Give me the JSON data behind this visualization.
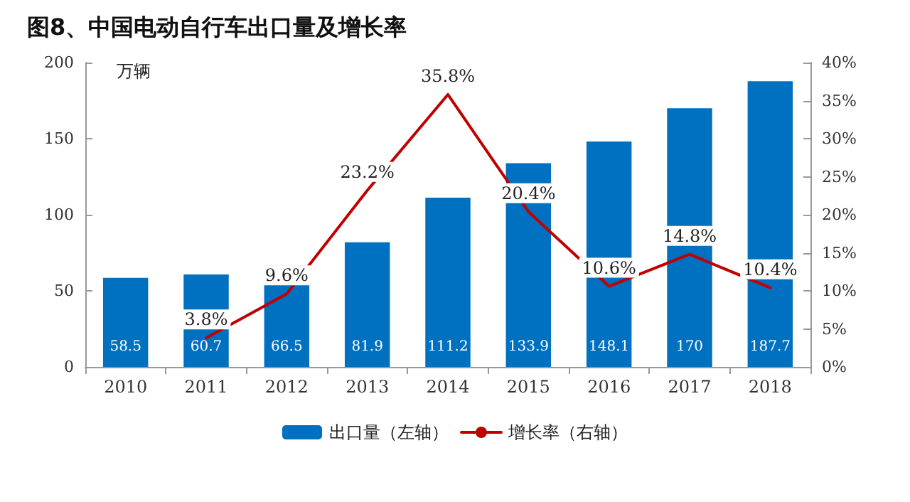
{
  "chart_data": {
    "type": "bar",
    "title": "图8、中国电动自行车出口量及增长率",
    "ylabel": "万辆",
    "categories": [
      "2010",
      "2011",
      "2012",
      "2013",
      "2014",
      "2015",
      "2016",
      "2017",
      "2018"
    ],
    "series": [
      {
        "name": "出口量（左轴）",
        "color": "#0070c0",
        "values": [
          58.5,
          60.7,
          66.5,
          81.9,
          111.2,
          133.9,
          148.1,
          170,
          187.7
        ],
        "value_labels": [
          "58.5",
          "60.7",
          "66.5",
          "81.9",
          "111.2",
          "133.9",
          "148.1",
          "170",
          "187.7"
        ]
      },
      {
        "name": "增长率（右轴）",
        "type": "line",
        "axis": "y2",
        "color": "#c00000",
        "values": [
          null,
          3.8,
          9.6,
          23.2,
          35.8,
          20.4,
          10.6,
          14.8,
          10.4
        ],
        "value_labels": [
          null,
          "3.8%",
          "9.6%",
          "23.2%",
          "35.8%",
          "20.4%",
          "10.6%",
          "14.8%",
          "10.4%"
        ]
      }
    ],
    "ylim": [
      0,
      200
    ],
    "yticks": [
      0,
      50,
      100,
      150,
      200
    ],
    "y2lim": [
      0,
      40
    ],
    "y2ticks": [
      {
        "value": 0,
        "label": "0%"
      },
      {
        "value": 5,
        "label": "5%"
      },
      {
        "value": 10,
        "label": "10%"
      },
      {
        "value": 15,
        "label": "15%"
      },
      {
        "value": 20,
        "label": "20%"
      },
      {
        "value": 25,
        "label": "25%"
      },
      {
        "value": 30,
        "label": "30%"
      },
      {
        "value": 35,
        "label": "35%"
      },
      {
        "value": 40,
        "label": "40%"
      }
    ],
    "legend": "bottom",
    "grid": false,
    "marker": "none",
    "line_style": "solid"
  }
}
